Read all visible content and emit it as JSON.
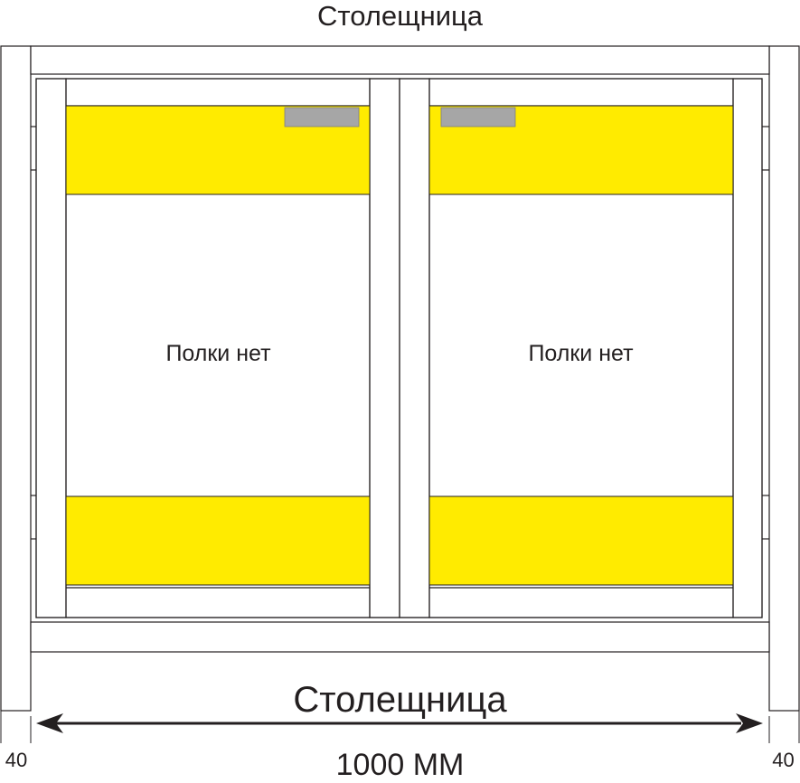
{
  "labels": {
    "top_title": "Столещница",
    "bottom_label": "Столещница",
    "width_dimension": "1000 ММ",
    "left_offset": "40",
    "right_offset": "40",
    "left_door_note": "Полки нет",
    "right_door_note": "Полки нет"
  },
  "colors": {
    "line": "#231f20",
    "drawer_fill": "#ffeb00",
    "handle_fill": "#a6a6a6",
    "background": "#ffffff"
  },
  "icons": {
    "dimension_arrow": "double-headed-arrow"
  }
}
